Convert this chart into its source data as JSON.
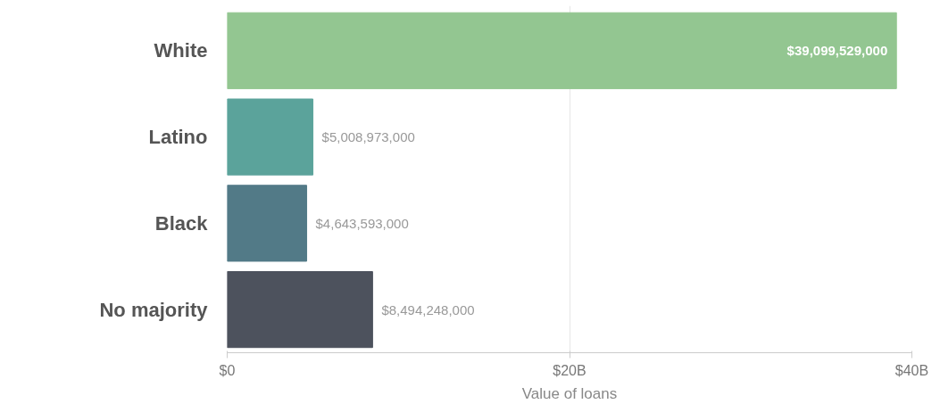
{
  "chart_data": {
    "type": "bar",
    "orientation": "horizontal",
    "xlabel": "Value of loans",
    "categories": [
      "White",
      "Latino",
      "Black",
      "No majority"
    ],
    "values": [
      39099529000,
      5008973000,
      4643593000,
      8494248000
    ],
    "colors": [
      "#93c691",
      "#5ba39b",
      "#527a87",
      "#4d525d"
    ],
    "value_labels": [
      "$39,099,529,000",
      "$5,008,973,000",
      "$4,643,593,000",
      "$8,494,248,000"
    ],
    "xlim": [
      0,
      40000000000
    ],
    "xticks": [
      {
        "value": 0,
        "label": "$0"
      },
      {
        "value": 20000000000,
        "label": "$20B"
      },
      {
        "value": 40000000000,
        "label": "$40B"
      }
    ],
    "grid": "x"
  }
}
